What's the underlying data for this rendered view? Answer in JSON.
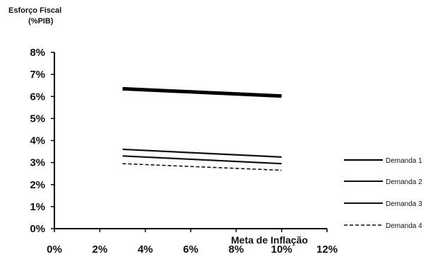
{
  "chart_data": {
    "type": "line",
    "ylabel_lines": [
      "Esforço Fiscal",
      "(%PIB)"
    ],
    "xlabel": "Meta de Inflação",
    "x_ticks": [
      "0%",
      "2%",
      "4%",
      "6%",
      "8%",
      "10%",
      "12%"
    ],
    "y_ticks": [
      "0%",
      "1%",
      "2%",
      "3%",
      "4%",
      "5%",
      "6%",
      "7%",
      "8%"
    ],
    "xlim": [
      0,
      12
    ],
    "ylim": [
      0,
      8
    ],
    "x": [
      3,
      10
    ],
    "grid": false,
    "legend_position": "right",
    "series": [
      {
        "name": "Demanda 1",
        "values": [
          6.35,
          6.02
        ],
        "style": "solid-thick",
        "color": "#000000"
      },
      {
        "name": "Demanda 2",
        "values": [
          3.6,
          3.25
        ],
        "style": "solid",
        "color": "#111111"
      },
      {
        "name": "Demanda 3",
        "values": [
          3.3,
          2.95
        ],
        "style": "solid",
        "color": "#111111"
      },
      {
        "name": "Demanda 4",
        "values": [
          2.95,
          2.65
        ],
        "style": "dashed",
        "color": "#111111"
      }
    ]
  }
}
